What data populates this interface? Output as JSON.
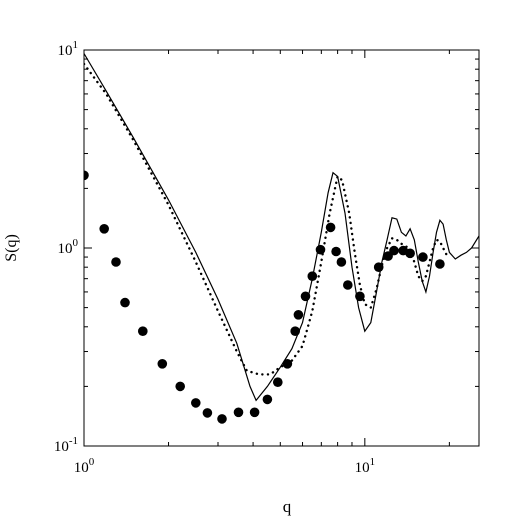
{
  "chart_data": {
    "type": "line",
    "xlabel": "q",
    "ylabel": "S(q)",
    "xscale": "log",
    "yscale": "log",
    "xlim": [
      1,
      25.5
    ],
    "ylim": [
      0.1,
      10
    ],
    "grid": false,
    "x_ticks": [
      {
        "base": "10",
        "exp": "0",
        "value": 1
      },
      {
        "base": "10",
        "exp": "1",
        "value": 10
      }
    ],
    "y_ticks": [
      {
        "base": "10",
        "exp": "-1",
        "value": 0.1
      },
      {
        "base": "10",
        "exp": "0",
        "value": 1
      },
      {
        "base": "10",
        "exp": "1",
        "value": 10
      }
    ],
    "series": [
      {
        "style": "solid-line",
        "points": [
          [
            1.0,
            9.6
          ],
          [
            1.2,
            6.2
          ],
          [
            1.5,
            3.6
          ],
          [
            2.0,
            1.75
          ],
          [
            2.5,
            0.95
          ],
          [
            3.0,
            0.55
          ],
          [
            3.5,
            0.33
          ],
          [
            3.9,
            0.2
          ],
          [
            4.1,
            0.17
          ],
          [
            4.5,
            0.2
          ],
          [
            5.0,
            0.25
          ],
          [
            5.5,
            0.31
          ],
          [
            6.0,
            0.42
          ],
          [
            6.5,
            0.7
          ],
          [
            7.0,
            1.2
          ],
          [
            7.4,
            1.9
          ],
          [
            7.7,
            2.4
          ],
          [
            8.0,
            2.3
          ],
          [
            8.5,
            1.5
          ],
          [
            9.0,
            0.8
          ],
          [
            9.5,
            0.5
          ],
          [
            10.0,
            0.38
          ],
          [
            10.5,
            0.42
          ],
          [
            11.0,
            0.6
          ],
          [
            11.5,
            0.85
          ],
          [
            12.0,
            1.1
          ],
          [
            12.5,
            1.42
          ],
          [
            13.0,
            1.4
          ],
          [
            13.5,
            1.2
          ],
          [
            14.0,
            1.15
          ],
          [
            14.5,
            1.25
          ],
          [
            15.0,
            1.1
          ],
          [
            15.5,
            0.85
          ],
          [
            16.0,
            0.68
          ],
          [
            16.5,
            0.6
          ],
          [
            17.0,
            0.72
          ],
          [
            17.5,
            0.95
          ],
          [
            18.0,
            1.2
          ],
          [
            18.5,
            1.38
          ],
          [
            19.0,
            1.32
          ],
          [
            19.5,
            1.1
          ],
          [
            20.0,
            0.95
          ],
          [
            21.0,
            0.88
          ],
          [
            22.0,
            0.92
          ],
          [
            23.0,
            0.95
          ],
          [
            24.0,
            1.0
          ],
          [
            25.5,
            1.15
          ]
        ]
      },
      {
        "style": "dotted",
        "points": [
          [
            1.0,
            8.5
          ],
          [
            1.2,
            6.0
          ],
          [
            1.5,
            3.5
          ],
          [
            2.0,
            1.65
          ],
          [
            2.5,
            0.85
          ],
          [
            3.0,
            0.48
          ],
          [
            3.5,
            0.3
          ],
          [
            3.8,
            0.24
          ],
          [
            4.2,
            0.23
          ],
          [
            4.6,
            0.23
          ],
          [
            5.0,
            0.25
          ],
          [
            5.5,
            0.27
          ],
          [
            6.0,
            0.32
          ],
          [
            6.5,
            0.48
          ],
          [
            7.0,
            0.85
          ],
          [
            7.5,
            1.5
          ],
          [
            8.0,
            2.3
          ],
          [
            8.3,
            2.2
          ],
          [
            8.8,
            1.5
          ],
          [
            9.2,
            0.95
          ],
          [
            9.6,
            0.65
          ],
          [
            10.0,
            0.52
          ],
          [
            10.5,
            0.5
          ],
          [
            11.0,
            0.62
          ],
          [
            11.5,
            0.82
          ],
          [
            12.0,
            1.0
          ],
          [
            12.5,
            1.12
          ],
          [
            13.0,
            1.1
          ],
          [
            13.5,
            1.05
          ],
          [
            14.0,
            1.02
          ],
          [
            14.5,
            0.98
          ],
          [
            15.0,
            0.85
          ],
          [
            15.5,
            0.72
          ],
          [
            16.0,
            0.68
          ],
          [
            16.5,
            0.72
          ],
          [
            17.0,
            0.85
          ],
          [
            17.5,
            1.0
          ],
          [
            18.0,
            1.1
          ],
          [
            18.5,
            1.08
          ],
          [
            19.0,
            1.0
          ],
          [
            19.5,
            0.93
          ],
          [
            20.0,
            0.9
          ]
        ]
      },
      {
        "style": "markers",
        "points": [
          [
            1.0,
            2.33
          ],
          [
            1.18,
            1.25
          ],
          [
            1.3,
            0.85
          ],
          [
            1.4,
            0.53
          ],
          [
            1.62,
            0.38
          ],
          [
            1.9,
            0.26
          ],
          [
            2.2,
            0.2
          ],
          [
            2.5,
            0.165
          ],
          [
            2.75,
            0.147
          ],
          [
            3.1,
            0.137
          ],
          [
            3.55,
            0.148
          ],
          [
            4.05,
            0.148
          ],
          [
            4.5,
            0.172
          ],
          [
            4.9,
            0.21
          ],
          [
            5.3,
            0.26
          ],
          [
            5.65,
            0.38
          ],
          [
            5.8,
            0.46
          ],
          [
            6.15,
            0.57
          ],
          [
            6.5,
            0.72
          ],
          [
            6.95,
            0.98
          ],
          [
            7.55,
            1.27
          ],
          [
            7.9,
            0.96
          ],
          [
            8.25,
            0.85
          ],
          [
            8.7,
            0.65
          ],
          [
            9.6,
            0.57
          ],
          [
            11.2,
            0.8
          ],
          [
            12.1,
            0.91
          ],
          [
            12.7,
            0.97
          ],
          [
            13.7,
            0.97
          ],
          [
            14.5,
            0.94
          ],
          [
            16.1,
            0.9
          ],
          [
            18.5,
            0.83
          ]
        ]
      }
    ]
  }
}
